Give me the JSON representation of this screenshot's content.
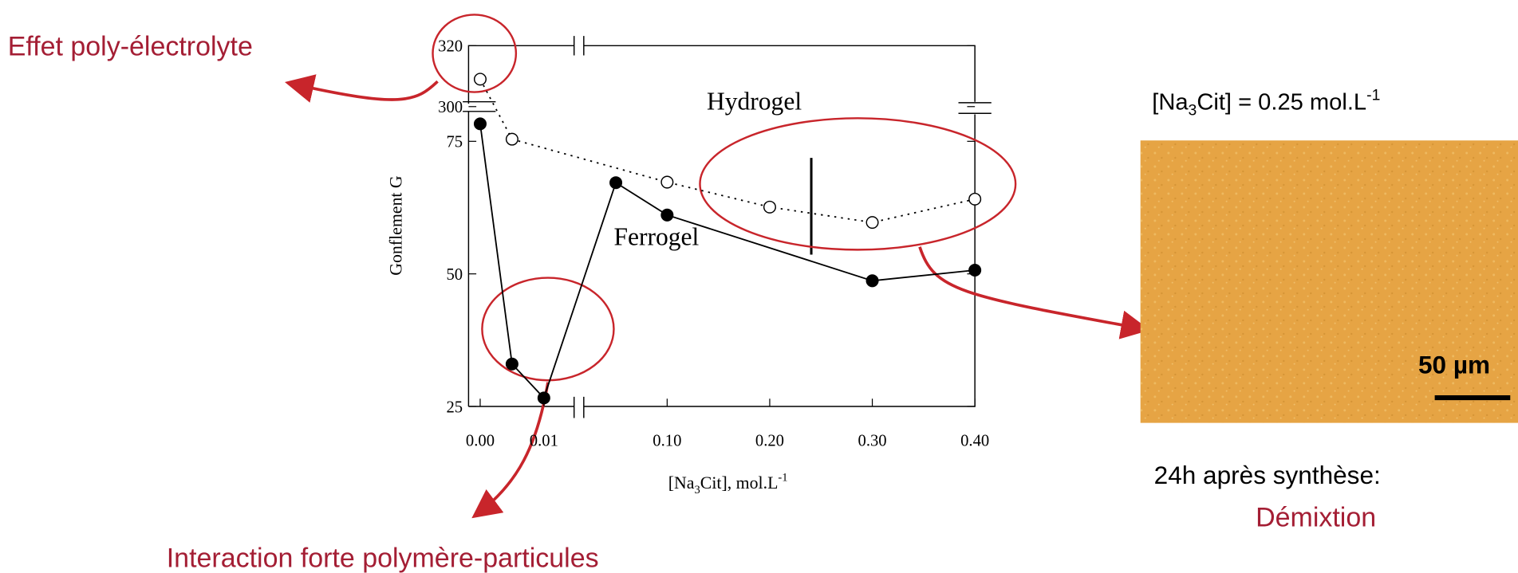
{
  "chart_data": {
    "type": "line",
    "y_label": "Gonflement G",
    "x_label": [
      "[Na",
      "3",
      "Cit], mol.L",
      "-1"
    ],
    "xlim": [
      [
        0,
        0.0155
      ],
      [
        0.014,
        0.4
      ]
    ],
    "ylim": [
      [
        25,
        81
      ],
      [
        300,
        320
      ]
    ],
    "xticks": [
      {
        "value": 0,
        "label": "0.00"
      },
      {
        "value": 0.01,
        "label": "0.01"
      },
      {
        "value": 0.1,
        "label": "0.10"
      },
      {
        "value": 0.2,
        "label": "0.20"
      },
      {
        "value": 0.3,
        "label": "0.30"
      },
      {
        "value": 0.4,
        "label": "0.40"
      }
    ],
    "yticks": [
      25,
      50,
      75,
      300,
      320
    ],
    "series": [
      {
        "name": "Hydrogel",
        "color": "#000000",
        "line_style": "dotted",
        "marker": "open",
        "x": [
          0,
          0.005,
          0.1,
          0.2,
          0.3,
          0.4
        ],
        "values": [
          309,
          75.4,
          67.3,
          62.6,
          59.7,
          64.1
        ]
      },
      {
        "name": "Ferrogel",
        "color": "#000000",
        "line_style": "solid",
        "marker": "filled",
        "x": [
          0,
          0.005,
          0.01,
          0.05,
          0.1,
          0.3,
          0.4
        ],
        "values": [
          78.3,
          33,
          26.6,
          67.2,
          61.1,
          48.7,
          50.7
        ]
      }
    ],
    "annotations": {
      "poly": "Effet poly-électrolyte",
      "interaction": "Interaction forte polymère-particules",
      "condition": [
        "[Na",
        "3",
        "Cit] = 0.25 mol.L",
        "-1"
      ],
      "after": "24h après synthèse:",
      "demix": "Démixtion",
      "scale": "50 µm"
    }
  }
}
